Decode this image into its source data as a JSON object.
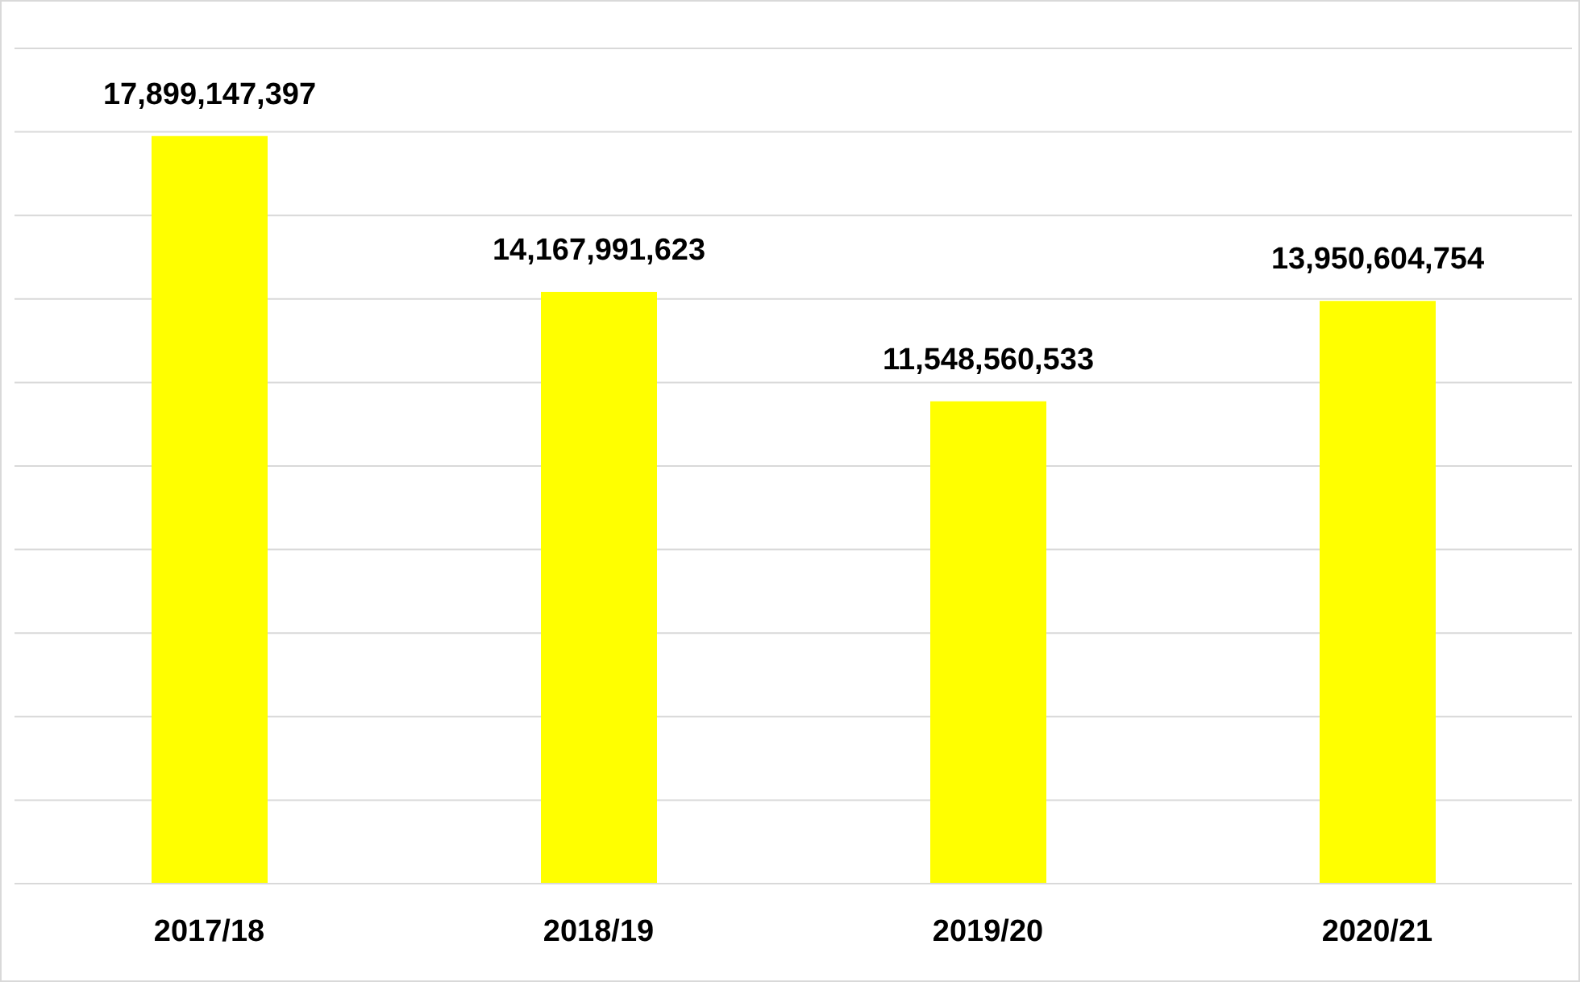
{
  "chart_data": {
    "type": "bar",
    "categories": [
      "2017/18",
      "2018/19",
      "2019/20",
      "2020/21"
    ],
    "values": [
      17899147397,
      14167991623,
      11548560533,
      13950604754
    ],
    "value_labels": [
      "17,899,147,397",
      "14,167,991,623",
      "11,548,560,533",
      "13,950,604,754"
    ],
    "color": "#ffff00",
    "tick_labels": "x",
    "grid": "y"
  }
}
